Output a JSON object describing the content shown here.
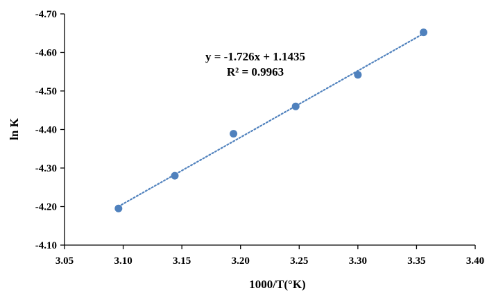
{
  "chart_data": {
    "type": "scatter",
    "xlabel": "1000/T(°K)",
    "ylabel": "ln K",
    "xlim": [
      3.05,
      3.4
    ],
    "ylim": [
      -4.1,
      -4.7
    ],
    "x_ticks": [
      "3.05",
      "3.10",
      "3.15",
      "3.20",
      "3.25",
      "3.30",
      "3.35",
      "3.40"
    ],
    "y_ticks": [
      "-4.10",
      "-4.20",
      "-4.30",
      "-4.40",
      "-4.50",
      "-4.60",
      "-4.70"
    ],
    "grid": false,
    "series": [
      {
        "x": [
          3.096,
          3.144,
          3.194,
          3.247,
          3.3,
          3.356
        ],
        "y": [
          -4.195,
          -4.28,
          -4.389,
          -4.46,
          -4.542,
          -4.652
        ]
      }
    ],
    "trendline": {
      "slope": -1.726,
      "intercept": 1.1435,
      "style": "dotted",
      "equation": "y = -1.726x + 1.1435",
      "r_squared": "R² = 0.9963"
    },
    "colors": {
      "marker": "#4F81BD",
      "trendline": "#4F81BD",
      "axis": "#000000"
    }
  }
}
